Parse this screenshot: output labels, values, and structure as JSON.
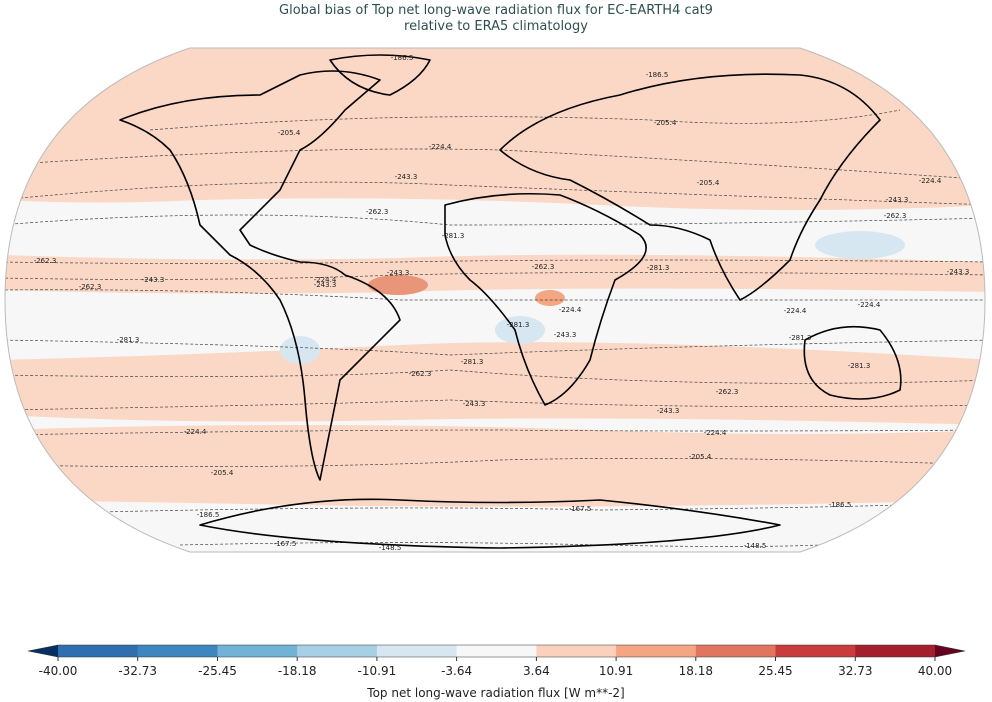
{
  "map": {
    "title": [
      "Global bias of Top net long-wave radiation flux for EC-EARTH4 cat9",
      "relative to ERA5 climatology"
    ],
    "contour_labels": [
      "-186.5",
      "-186.5",
      "-205.4",
      "-205.4",
      "-224.4",
      "-243.3",
      "-262.3",
      "-281.3",
      "-262.3",
      "-243.3",
      "-262.3",
      "-243.3",
      "-262.3",
      "-281.3",
      "-224.4",
      "-243.3",
      "-262.3",
      "-243.3",
      "-224.4",
      "-224.4",
      "-281.3",
      "-281.3",
      "-205.4",
      "-224.4",
      "-281.3",
      "-243.3",
      "-281.3",
      "-262.3",
      "-243.3",
      "-262.3",
      "-243.3",
      "-224.4",
      "-224.4",
      "-205.4",
      "-205.4",
      "-186.5",
      "-186.5",
      "-167.5",
      "-167.5",
      "-148.5",
      "-148.5",
      "-224.4",
      "-281.3",
      "-243.3"
    ],
    "colorbar": {
      "label": "Top net long-wave radiation flux [W m**-2]",
      "ticks": [
        {
          "value": -40,
          "label": "-40.00"
        },
        {
          "value": -32.73,
          "label": "-32.73"
        },
        {
          "value": -25.45,
          "label": "-25.45"
        },
        {
          "value": -18.18,
          "label": "-18.18"
        },
        {
          "value": -10.91,
          "label": "-10.91"
        },
        {
          "value": -3.64,
          "label": "-3.64"
        },
        {
          "value": 3.64,
          "label": "3.64"
        },
        {
          "value": 10.91,
          "label": "10.91"
        },
        {
          "value": 18.18,
          "label": "18.18"
        },
        {
          "value": 25.45,
          "label": "25.45"
        },
        {
          "value": 32.73,
          "label": "32.73"
        },
        {
          "value": 40,
          "label": "40.00"
        }
      ],
      "colors": [
        "#2f6fb0",
        "#3d86c0",
        "#72b2d7",
        "#a8d0e4",
        "#d6e7f1",
        "#f7f7f7",
        "#fbd1be",
        "#f4a582",
        "#e0765f",
        "#c83d3c",
        "#a51e2c"
      ],
      "extend_colors": [
        "#053061",
        "#67001f"
      ]
    }
  }
}
